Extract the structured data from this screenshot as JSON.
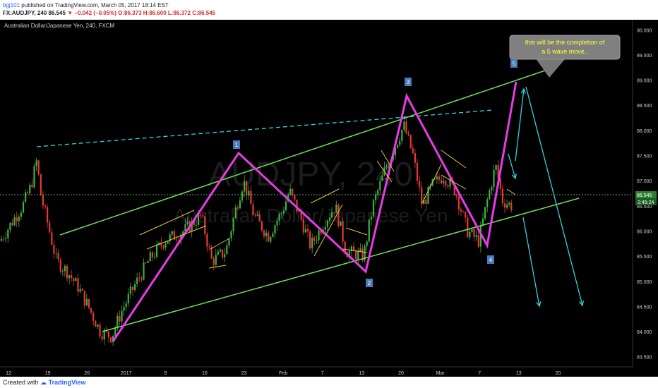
{
  "header": {
    "author": "bgj101",
    "published_text": "published on TradingView.com, March 05, 2017 18:14 EST",
    "symbol": "FX:AUDJPY, 240",
    "last": "86.545",
    "change": "▼ −0.042 (−0.05%)",
    "open": "O:86.373",
    "high": "H:86.600",
    "low": "L:86.372",
    "close": "C:86.545"
  },
  "footer": {
    "created_with": "Created with",
    "brand": "TradingView"
  },
  "chart_data": {
    "type": "candlestick",
    "title": "Australian Dollar/Japanese Yen, 240, FXCM",
    "watermark_symbol": "AUDJPY, 240",
    "watermark_name": "Australian Dollar/Japanese Yen",
    "ylim": [
      83.3,
      90.2
    ],
    "y_ticks": [
      "90.000",
      "89.500",
      "89.000",
      "88.500",
      "88.000",
      "87.500",
      "87.000",
      "86.500",
      "86.000",
      "85.500",
      "85.000",
      "84.500",
      "84.000",
      "83.500"
    ],
    "x_ticks": [
      "12",
      "19",
      "26",
      "2017",
      "9",
      "16",
      "23",
      "Feb",
      "7",
      "13",
      "20",
      "Mar",
      "7",
      "13",
      "20"
    ],
    "price_label": "86.545",
    "countdown_label": "2:45:24",
    "wave_labels": [
      "1",
      "2",
      "3",
      "4",
      "5"
    ],
    "annotation": "this will be the completion of a 5 wave move..",
    "colors": {
      "background": "#000000",
      "up": "#3cb043",
      "down": "#e53935",
      "channel": "#6fe05a",
      "wave": "#e63be6",
      "projection": "#35d1e0",
      "pattern": "#e8c23a",
      "label_box": "#4a7ab8",
      "price_label": "#2e7d32"
    }
  }
}
